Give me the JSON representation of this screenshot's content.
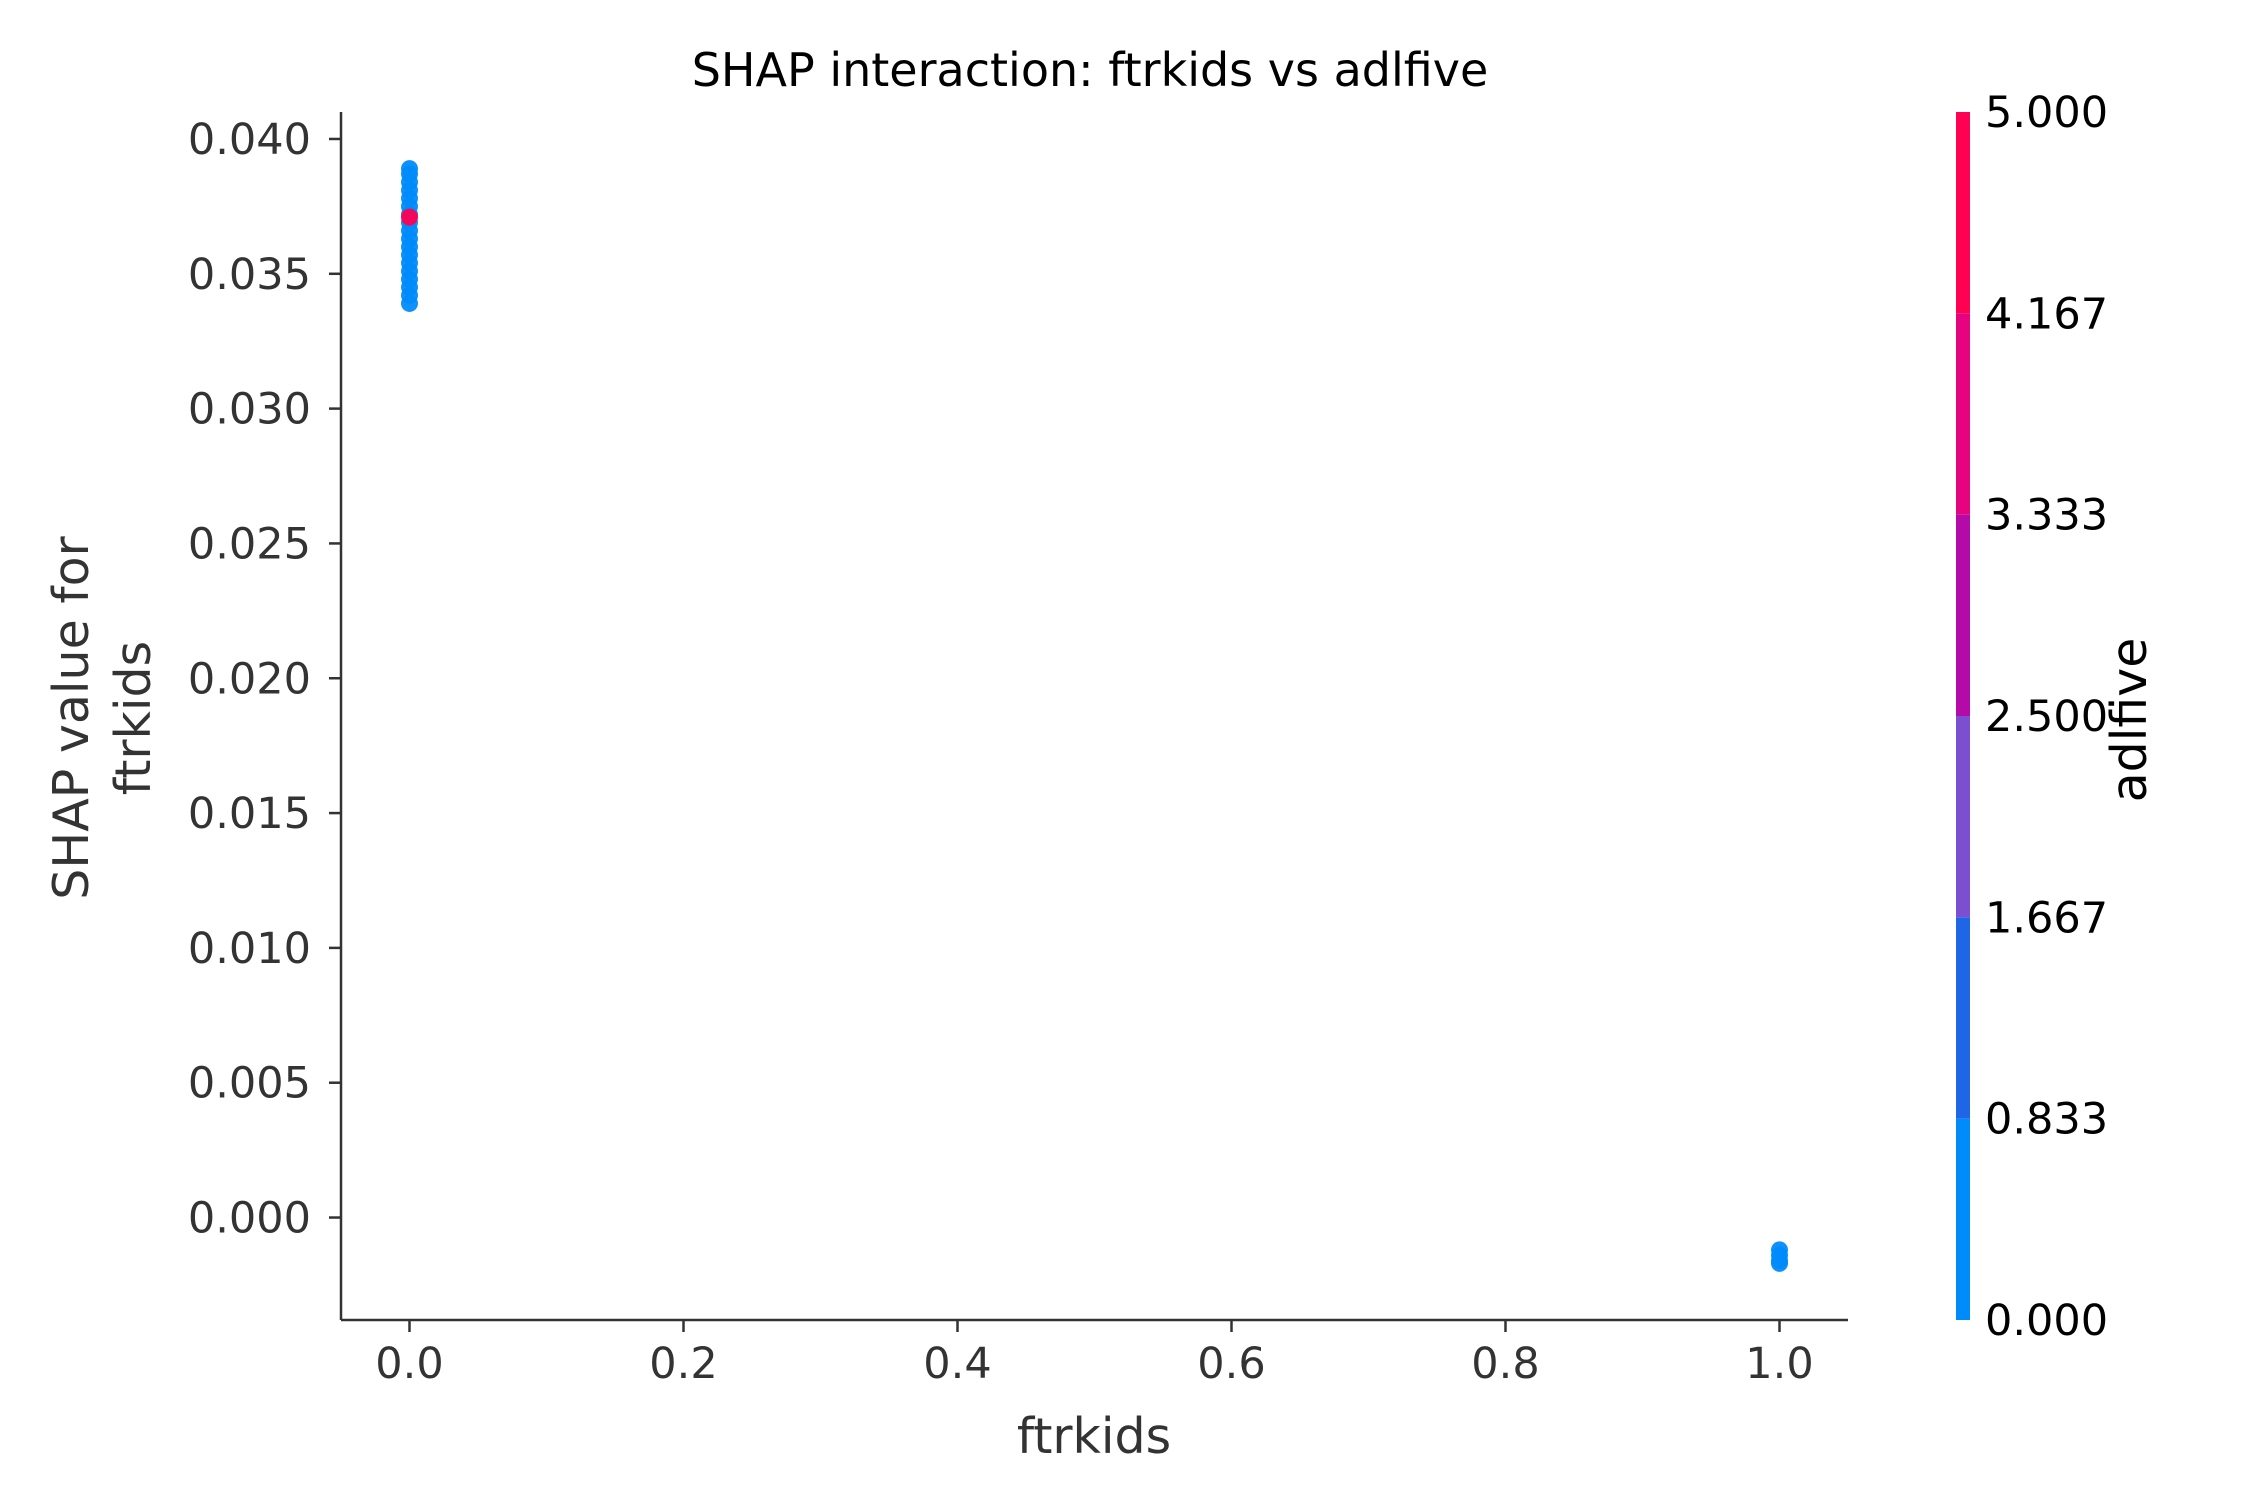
{
  "chart_data": {
    "type": "scatter",
    "title": "SHAP interaction: ftrkids vs adlfive",
    "xlabel": "ftrkids",
    "ylabel_lines": [
      "SHAP value for",
      "ftrkids"
    ],
    "xlim": [
      -0.05,
      1.05
    ],
    "ylim": [
      -0.0038,
      0.041
    ],
    "xticks": [
      0.0,
      0.2,
      0.4,
      0.6,
      0.8,
      1.0
    ],
    "xtick_labels": [
      "0.0",
      "0.2",
      "0.4",
      "0.6",
      "0.8",
      "1.0"
    ],
    "yticks": [
      0.0,
      0.005,
      0.01,
      0.015,
      0.02,
      0.025,
      0.03,
      0.035,
      0.04
    ],
    "ytick_labels": [
      "0.000",
      "0.005",
      "0.010",
      "0.015",
      "0.020",
      "0.025",
      "0.030",
      "0.035",
      "0.040"
    ],
    "grid": false,
    "points": [
      {
        "x": 0.0,
        "y": 0.0339,
        "c": 0.0
      },
      {
        "x": 0.0,
        "y": 0.0342,
        "c": 0.0
      },
      {
        "x": 0.0,
        "y": 0.0345,
        "c": 0.0
      },
      {
        "x": 0.0,
        "y": 0.0348,
        "c": 0.0
      },
      {
        "x": 0.0,
        "y": 0.0351,
        "c": 0.0
      },
      {
        "x": 0.0,
        "y": 0.0354,
        "c": 0.0
      },
      {
        "x": 0.0,
        "y": 0.0357,
        "c": 0.0
      },
      {
        "x": 0.0,
        "y": 0.036,
        "c": 0.0
      },
      {
        "x": 0.0,
        "y": 0.0363,
        "c": 0.0
      },
      {
        "x": 0.0,
        "y": 0.0366,
        "c": 0.0
      },
      {
        "x": 0.0,
        "y": 0.0369,
        "c": 0.0
      },
      {
        "x": 0.0,
        "y": 0.0372,
        "c": 0.0
      },
      {
        "x": 0.0,
        "y": 0.0375,
        "c": 0.0
      },
      {
        "x": 0.0,
        "y": 0.0378,
        "c": 0.0
      },
      {
        "x": 0.0,
        "y": 0.0381,
        "c": 0.0
      },
      {
        "x": 0.0,
        "y": 0.0384,
        "c": 0.0
      },
      {
        "x": 0.0,
        "y": 0.0387,
        "c": 0.0
      },
      {
        "x": 0.0,
        "y": 0.0389,
        "c": 0.0
      },
      {
        "x": 0.0,
        "y": 0.0371,
        "c": 5.0
      },
      {
        "x": 1.0,
        "y": -0.0012,
        "c": 0.0
      },
      {
        "x": 1.0,
        "y": -0.0014,
        "c": 0.0
      },
      {
        "x": 1.0,
        "y": -0.0016,
        "c": 0.0
      },
      {
        "x": 1.0,
        "y": -0.0017,
        "c": 0.0
      }
    ],
    "colorbar": {
      "label": "adlfive",
      "range": [
        0.0,
        5.0
      ],
      "ticks": [
        0.0,
        0.833,
        1.667,
        2.5,
        3.333,
        4.167,
        5.0
      ],
      "tick_labels": [
        "0.000",
        "0.833",
        "1.667",
        "2.500",
        "3.333",
        "4.167",
        "5.000"
      ],
      "bands": [
        {
          "from": 0.0,
          "to": 0.833,
          "color": "#008bfb"
        },
        {
          "from": 0.833,
          "to": 1.667,
          "color": "#1e66e6"
        },
        {
          "from": 1.667,
          "to": 2.5,
          "color": "#7c4fd0"
        },
        {
          "from": 2.5,
          "to": 3.333,
          "color": "#b40aa8"
        },
        {
          "from": 3.333,
          "to": 4.167,
          "color": "#e5037f"
        },
        {
          "from": 4.167,
          "to": 5.0,
          "color": "#ff0052"
        }
      ]
    }
  }
}
